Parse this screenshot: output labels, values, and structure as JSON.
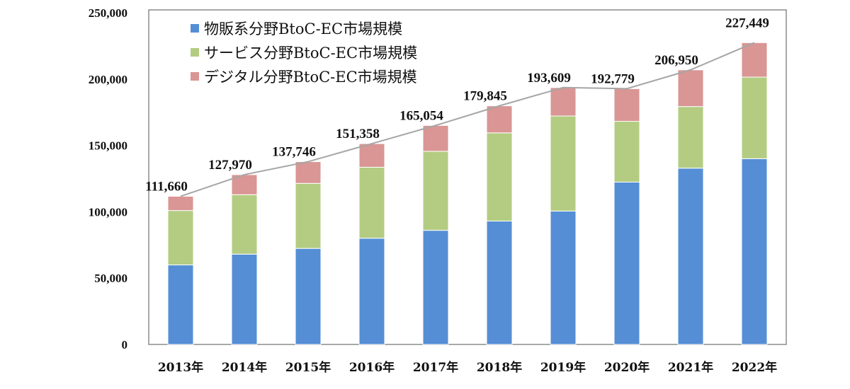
{
  "chart_data": {
    "type": "bar",
    "stacked": true,
    "categories": [
      "2013年",
      "2014年",
      "2015年",
      "2016年",
      "2017年",
      "2018年",
      "2019年",
      "2020年",
      "2021年",
      "2022年"
    ],
    "series": [
      {
        "name": "物販系分野BtoC-EC市場規模",
        "color": "#558ed5",
        "values": [
          59931,
          68043,
          72398,
          80043,
          86008,
          92992,
          100515,
          122333,
          132865,
          139997
        ]
      },
      {
        "name": "サービス分野BtoC-EC市場規模",
        "color": "#b3cc82",
        "values": [
          41000,
          44816,
          49014,
          53532,
          59568,
          66471,
          71672,
          45832,
          46424,
          61477
        ]
      },
      {
        "name": "デジタル分野BtoC-EC市場規模",
        "color": "#d99694",
        "values": [
          10729,
          15111,
          16334,
          17783,
          19478,
          20382,
          21422,
          24614,
          27661,
          25975
        ]
      }
    ],
    "totals": [
      "111,660",
      "127,970",
      "137,746",
      "151,358",
      "165,054",
      "179,845",
      "193,609",
      "192,779",
      "206,950",
      "227,449"
    ],
    "total_line_color": "#a6a6a6",
    "yticks": [
      "0",
      "50,000",
      "100,000",
      "150,000",
      "200,000",
      "250,000"
    ],
    "ylim": [
      0,
      250000
    ],
    "grid": false,
    "legend": "top-left"
  }
}
